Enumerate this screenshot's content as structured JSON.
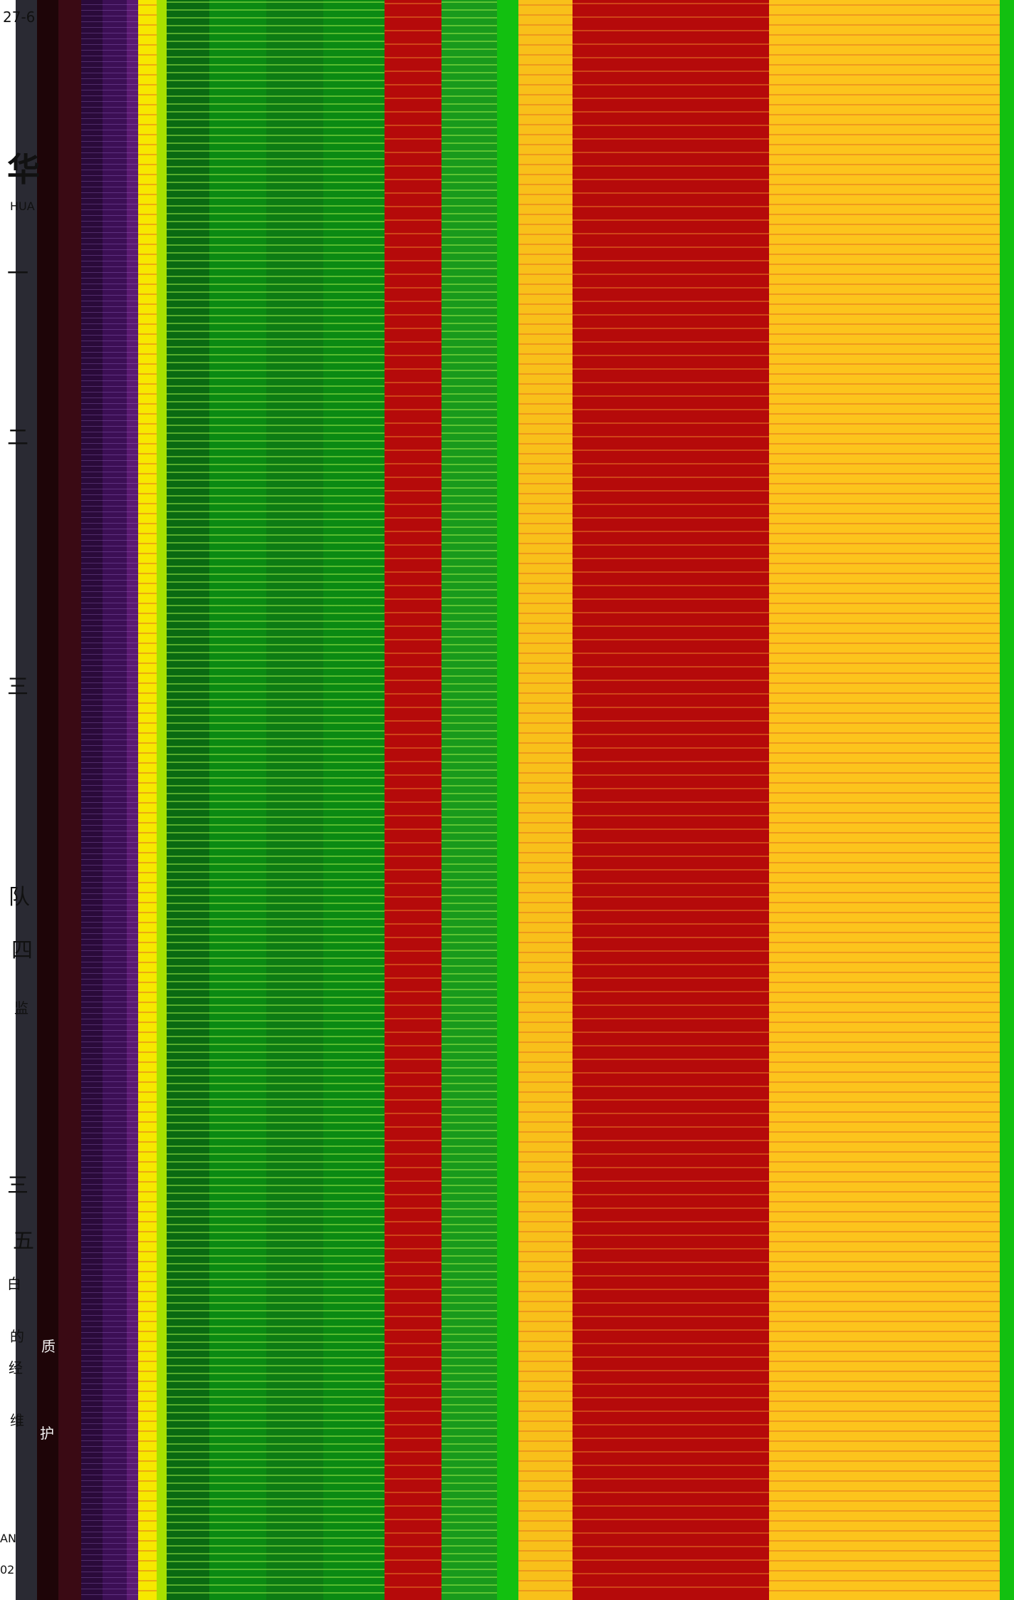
{
  "colors": {
    "left_margin": "#ffffff",
    "dark_gray": "#2a2a33",
    "maroon_dark": "#1e0508",
    "maroon": "#3a0a14",
    "purple_dark": "#2a0a3a",
    "purple": "#3c0f55",
    "violet": "#5a1a70",
    "yellow": "#f6e800",
    "lime": "#a6e000",
    "green_dark": "#0a6a12",
    "green": "#0b8a13",
    "green_mid": "#199a1c",
    "green_bright": "#12c010",
    "red": "#b50a0a",
    "amber": "#f8c01a",
    "amber_light": "#fcc41c"
  },
  "fragments": {
    "top_date": "27-6",
    "label_hua": "HUA",
    "cjk_hua": "华",
    "cjk_1": "一",
    "cjk_2": "二",
    "cjk_3": "三",
    "cjk_4": "四",
    "cjk_5": "五",
    "cjk_jian": "监",
    "cjk_de": "的",
    "cjk_zhi": "质",
    "cjk_wei": "维",
    "cjk_hu": "护",
    "cjk_jing": "经",
    "cjk_bai": "白",
    "cjk_dui": "队",
    "bottom_an": "AN",
    "bottom_02": "02"
  }
}
